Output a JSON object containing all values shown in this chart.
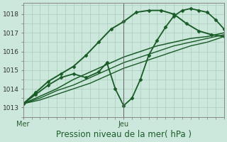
{
  "bg_color": "#cce8dc",
  "plot_bg_color": "#cce8dc",
  "grid_color": "#aaccbb",
  "line_color": "#1a5c28",
  "xlabel": "Pression niveau de la mer( hPa )",
  "xlabel_fontsize": 8.5,
  "yticks": [
    1013,
    1014,
    1015,
    1016,
    1017,
    1018
  ],
  "ylim": [
    1012.5,
    1018.6
  ],
  "xlim": [
    0,
    48
  ],
  "xtick_positions": [
    0,
    24
  ],
  "xtick_labels": [
    "Mer",
    "Jeu"
  ],
  "vline_x": 24,
  "series": [
    {
      "x": [
        0,
        4,
        8,
        12,
        16,
        20,
        24,
        28,
        32,
        36,
        40,
        44,
        48
      ],
      "y": [
        1013.2,
        1013.6,
        1014.0,
        1014.5,
        1014.9,
        1015.3,
        1015.7,
        1016.0,
        1016.3,
        1016.5,
        1016.7,
        1016.8,
        1017.0
      ],
      "lw": 1.1,
      "marker": null
    },
    {
      "x": [
        0,
        4,
        8,
        12,
        16,
        20,
        24,
        28,
        32,
        36,
        40,
        44,
        48
      ],
      "y": [
        1013.2,
        1013.5,
        1013.9,
        1014.2,
        1014.6,
        1015.0,
        1015.4,
        1015.7,
        1016.0,
        1016.3,
        1016.5,
        1016.7,
        1016.9
      ],
      "lw": 1.0,
      "marker": null
    },
    {
      "x": [
        0,
        4,
        8,
        12,
        16,
        20,
        24,
        28,
        32,
        36,
        40,
        44,
        48
      ],
      "y": [
        1013.2,
        1013.4,
        1013.7,
        1014.0,
        1014.3,
        1014.7,
        1015.1,
        1015.4,
        1015.7,
        1016.0,
        1016.3,
        1016.5,
        1016.8
      ],
      "lw": 1.0,
      "marker": null
    },
    {
      "x": [
        0,
        3,
        6,
        9,
        12,
        15,
        18,
        20,
        22,
        24,
        26,
        28,
        30,
        32,
        34,
        36,
        38,
        40,
        42,
        44,
        46,
        48
      ],
      "y": [
        1013.2,
        1013.7,
        1014.2,
        1014.6,
        1014.8,
        1014.6,
        1014.9,
        1015.4,
        1014.0,
        1013.1,
        1013.5,
        1014.5,
        1015.8,
        1016.6,
        1017.3,
        1017.9,
        1018.2,
        1018.3,
        1018.2,
        1018.1,
        1017.7,
        1017.2
      ],
      "lw": 1.3,
      "marker": "D"
    },
    {
      "x": [
        0,
        3,
        6,
        9,
        12,
        15,
        18,
        21,
        24,
        27,
        30,
        33,
        36,
        39,
        42,
        45,
        48
      ],
      "y": [
        1013.2,
        1013.8,
        1014.4,
        1014.8,
        1015.2,
        1015.8,
        1016.5,
        1017.2,
        1017.6,
        1018.1,
        1018.2,
        1018.2,
        1018.0,
        1017.5,
        1017.1,
        1016.9,
        1016.8
      ],
      "lw": 1.4,
      "marker": "D"
    }
  ]
}
